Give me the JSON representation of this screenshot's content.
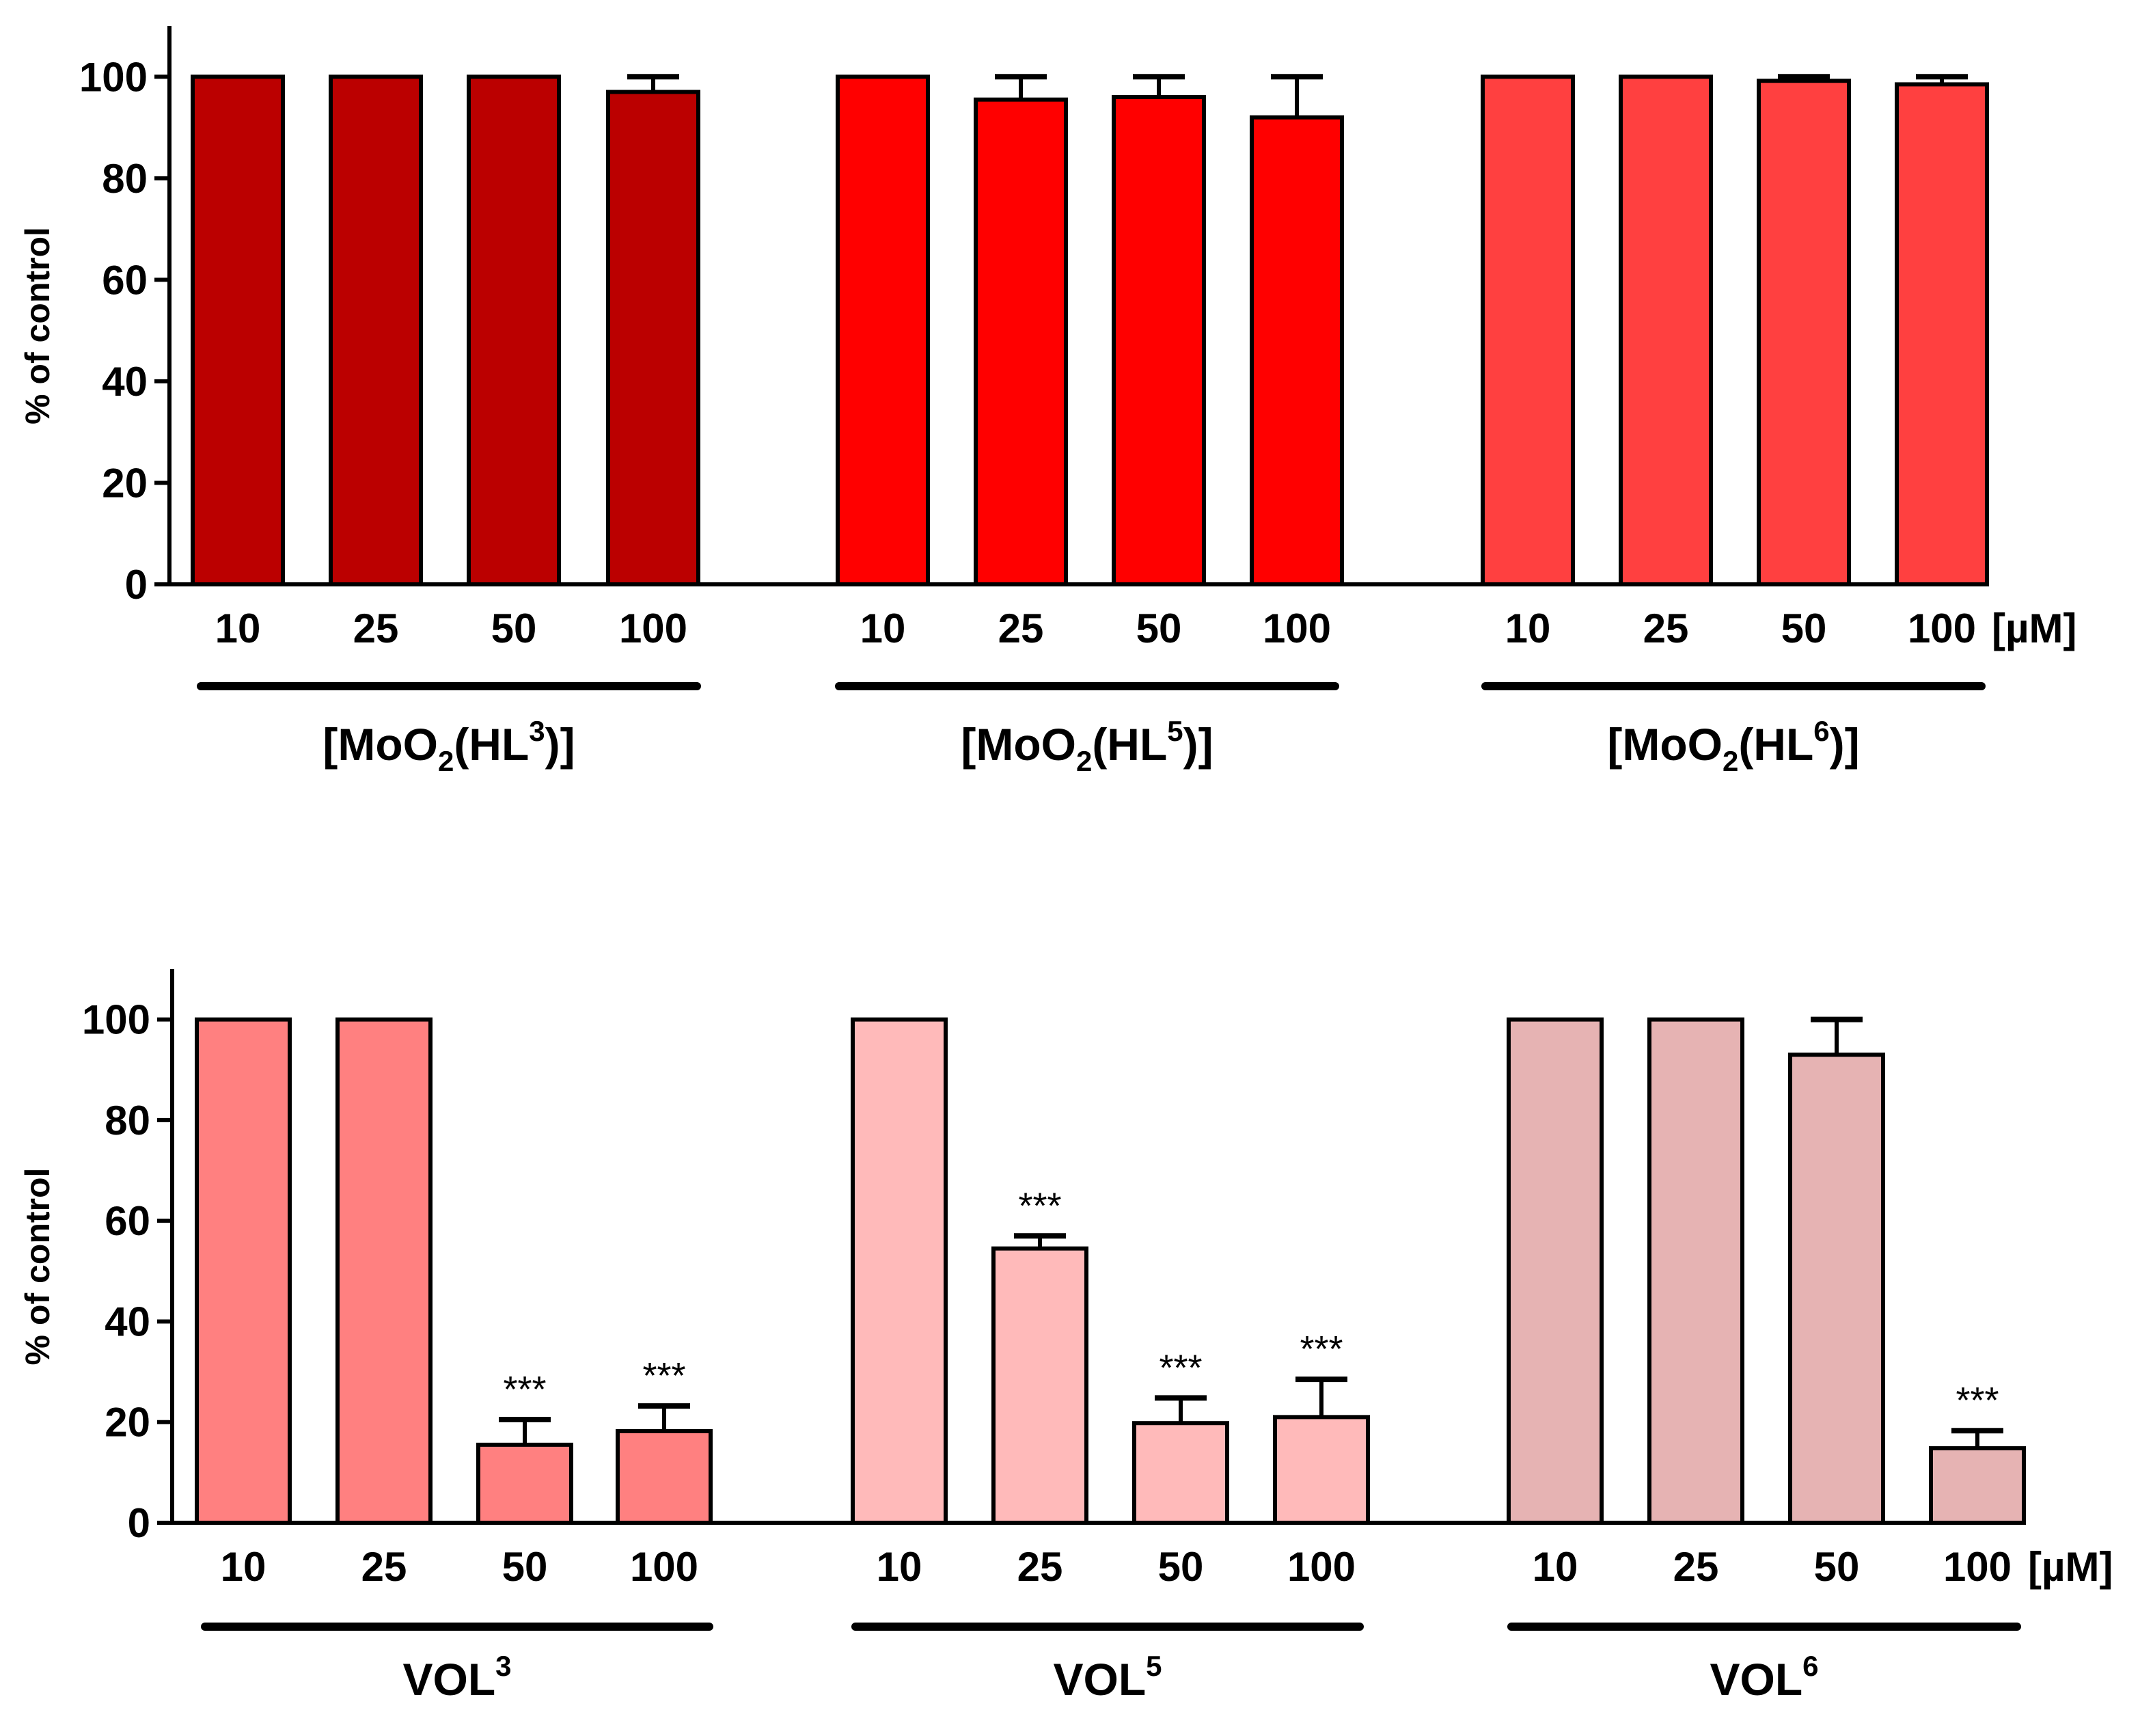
{
  "chart_data": [
    {
      "type": "bar",
      "ylabel": "% of control",
      "ylim": [
        0,
        110
      ],
      "yticks": [
        0,
        20,
        40,
        60,
        80,
        100
      ],
      "unit_label": "[µM]",
      "categories": [
        "10",
        "25",
        "50",
        "100"
      ],
      "groups": [
        {
          "label_base": "[MoO",
          "label_sub": "2",
          "label_mid": "(HL",
          "label_sup": "3",
          "label_end": ")]",
          "color": "#BB0000",
          "values": [
            100,
            100,
            100,
            97
          ],
          "errors": [
            0,
            0,
            0,
            3
          ],
          "significance": [
            "",
            "",
            "",
            ""
          ]
        },
        {
          "label_base": "[MoO",
          "label_sub": "2",
          "label_mid": "(HL",
          "label_sup": "5",
          "label_end": ")]",
          "color": "#FF0000",
          "values": [
            100,
            95.5,
            96,
            92
          ],
          "errors": [
            0,
            4.5,
            4,
            8
          ],
          "significance": [
            "",
            "",
            "",
            ""
          ]
        },
        {
          "label_base": "[MoO",
          "label_sub": "2",
          "label_mid": "(HL",
          "label_sup": "6",
          "label_end": ")]",
          "color": "#FF4040",
          "values": [
            100,
            100,
            99.2,
            98.5
          ],
          "errors": [
            0,
            0,
            0.8,
            1.5
          ],
          "significance": [
            "",
            "",
            "",
            ""
          ]
        }
      ]
    },
    {
      "type": "bar",
      "ylabel": "% of control",
      "ylim": [
        0,
        110
      ],
      "yticks": [
        0,
        20,
        40,
        60,
        80,
        100
      ],
      "unit_label": "[µM]",
      "categories": [
        "10",
        "25",
        "50",
        "100"
      ],
      "groups": [
        {
          "label_base": "VOL",
          "label_sup": "3",
          "color": "#FF8080",
          "values": [
            100,
            100,
            15.5,
            18.2
          ],
          "errors": [
            0,
            0,
            5,
            5
          ],
          "significance": [
            "",
            "",
            "***",
            "***"
          ]
        },
        {
          "label_base": "VOL",
          "label_sup": "5",
          "color": "#FFBABA",
          "values": [
            100,
            54.5,
            19.8,
            21
          ],
          "errors": [
            0,
            2.5,
            5,
            7.5
          ],
          "significance": [
            "",
            "***",
            "***",
            "***"
          ]
        },
        {
          "label_base": "VOL",
          "label_sup": "6",
          "color": "#E6B3B3",
          "values": [
            100,
            100,
            93,
            14.8
          ],
          "errors": [
            0,
            0,
            7,
            3.5
          ],
          "significance": [
            "",
            "",
            "",
            "***"
          ]
        }
      ]
    }
  ]
}
